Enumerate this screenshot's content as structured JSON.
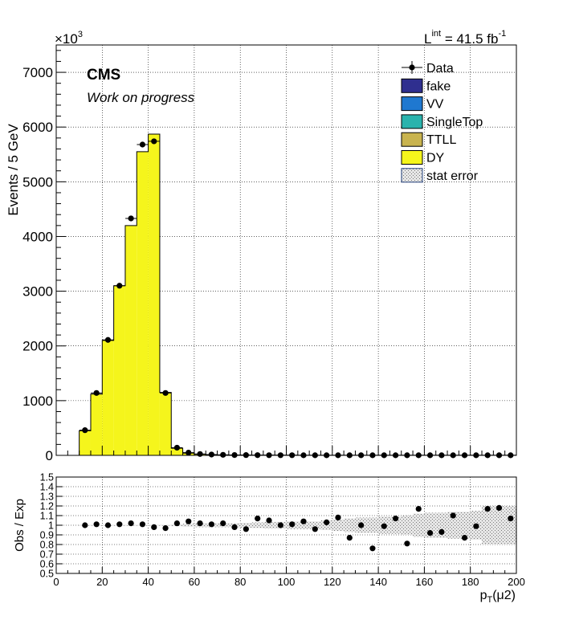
{
  "header": {
    "exponent_base": "×10",
    "exponent_power": "3",
    "lumi_prefix": "L",
    "lumi_sup": "int",
    "lumi_value": " = 41.5 fb",
    "lumi_unit_sup": "-1"
  },
  "labels": {
    "experiment": "CMS",
    "status": "Work on progress"
  },
  "colors": {
    "fake": "#2f2f8f",
    "VV": "#1f78d0",
    "SingleTop": "#2ab3ad",
    "TTLL": "#c9b44f",
    "DY": "#f5f51c"
  },
  "chart_data": [
    {
      "type": "bar",
      "title": "",
      "xlabel": "",
      "ylabel": "Events / 5 GeV",
      "xlim": [
        0,
        200
      ],
      "ylim": [
        0,
        7500
      ],
      "yticks": [
        0,
        1000,
        2000,
        3000,
        4000,
        5000,
        6000,
        7000
      ],
      "grid": true,
      "legend_placement": "top-right",
      "legend": [
        "Data",
        "fake",
        "VV",
        "SingleTop",
        "TTLL",
        "DY",
        "stat error"
      ],
      "bin_edges": [
        0,
        5,
        10,
        15,
        20,
        25,
        30,
        35,
        40,
        45,
        50,
        55,
        60,
        65,
        70,
        75,
        80,
        85,
        90,
        95,
        100,
        105,
        110,
        115,
        120,
        125,
        130,
        135,
        140,
        145,
        150,
        155,
        160,
        165,
        170,
        175,
        180,
        185,
        190,
        195,
        200
      ],
      "series": [
        {
          "name": "DY",
          "kind": "stacked-histogram",
          "values": [
            0,
            0,
            450,
            1120,
            2100,
            3100,
            4200,
            5550,
            5870,
            1150,
            130,
            40,
            20,
            12,
            8,
            6,
            5,
            4,
            3,
            3,
            3,
            2,
            2,
            2,
            2,
            2,
            2,
            2,
            2,
            2,
            2,
            2,
            2,
            2,
            2,
            2,
            2,
            2,
            2,
            2
          ]
        },
        {
          "name": "Data",
          "kind": "points",
          "x": [
            12.5,
            17.5,
            22.5,
            27.5,
            32.5,
            37.5,
            42.5,
            47.5,
            52.5,
            57.5,
            62.5,
            67.5,
            72.5,
            77.5,
            82.5,
            87.5,
            92.5,
            97.5,
            102.5,
            107.5,
            112.5,
            117.5,
            122.5,
            127.5,
            132.5,
            137.5,
            142.5,
            147.5,
            152.5,
            157.5,
            162.5,
            167.5,
            172.5,
            177.5,
            182.5,
            187.5,
            192.5,
            197.5
          ],
          "values": [
            460,
            1140,
            2110,
            3100,
            4330,
            5680,
            5740,
            1140,
            140,
            50,
            25,
            15,
            10,
            6,
            5,
            4,
            3,
            3,
            3,
            2,
            2,
            2,
            2,
            2,
            2,
            2,
            2,
            2,
            2,
            2,
            2,
            2,
            2,
            2,
            2,
            2,
            2,
            2
          ]
        }
      ]
    },
    {
      "type": "scatter",
      "title": "",
      "xlabel": "p_T(μ2)",
      "ylabel": "Obs / Exp",
      "xlim": [
        0,
        200
      ],
      "ylim": [
        0.5,
        1.5
      ],
      "xticks": [
        0,
        20,
        40,
        60,
        80,
        100,
        120,
        140,
        160,
        180,
        200
      ],
      "yticks": [
        0.5,
        0.6,
        0.7,
        0.8,
        0.9,
        1,
        1.1,
        1.2,
        1.3,
        1.4,
        1.5
      ],
      "grid": true,
      "series": [
        {
          "name": "ratio",
          "x": [
            12.5,
            17.5,
            22.5,
            27.5,
            32.5,
            37.5,
            42.5,
            47.5,
            52.5,
            57.5,
            62.5,
            67.5,
            72.5,
            77.5,
            82.5,
            87.5,
            92.5,
            97.5,
            102.5,
            107.5,
            112.5,
            117.5,
            122.5,
            127.5,
            132.5,
            137.5,
            142.5,
            147.5,
            152.5,
            157.5,
            162.5,
            167.5,
            172.5,
            177.5,
            182.5,
            187.5,
            192.5,
            197.5
          ],
          "values": [
            1.0,
            1.01,
            1.0,
            1.01,
            1.02,
            1.01,
            0.98,
            0.97,
            1.02,
            1.04,
            1.02,
            1.01,
            1.02,
            0.98,
            0.96,
            1.07,
            1.05,
            1.0,
            1.01,
            1.04,
            0.96,
            1.03,
            1.08,
            0.87,
            1.0,
            0.76,
            0.99,
            1.07,
            0.81,
            1.17,
            0.92,
            0.93,
            1.1,
            0.87,
            0.99,
            1.17,
            1.18,
            1.07
          ],
          "stat_error": [
            0.005,
            0.005,
            0.005,
            0.005,
            0.005,
            0.005,
            0.005,
            0.005,
            0.01,
            0.015,
            0.02,
            0.02,
            0.02,
            0.02,
            0.025,
            0.03,
            0.035,
            0.035,
            0.04,
            0.04,
            0.04,
            0.05,
            0.06,
            0.07,
            0.08,
            0.08,
            0.09,
            0.09,
            0.1,
            0.12,
            0.13,
            0.13,
            0.14,
            0.14,
            0.15,
            0.2,
            0.2,
            0.2
          ]
        }
      ]
    }
  ]
}
